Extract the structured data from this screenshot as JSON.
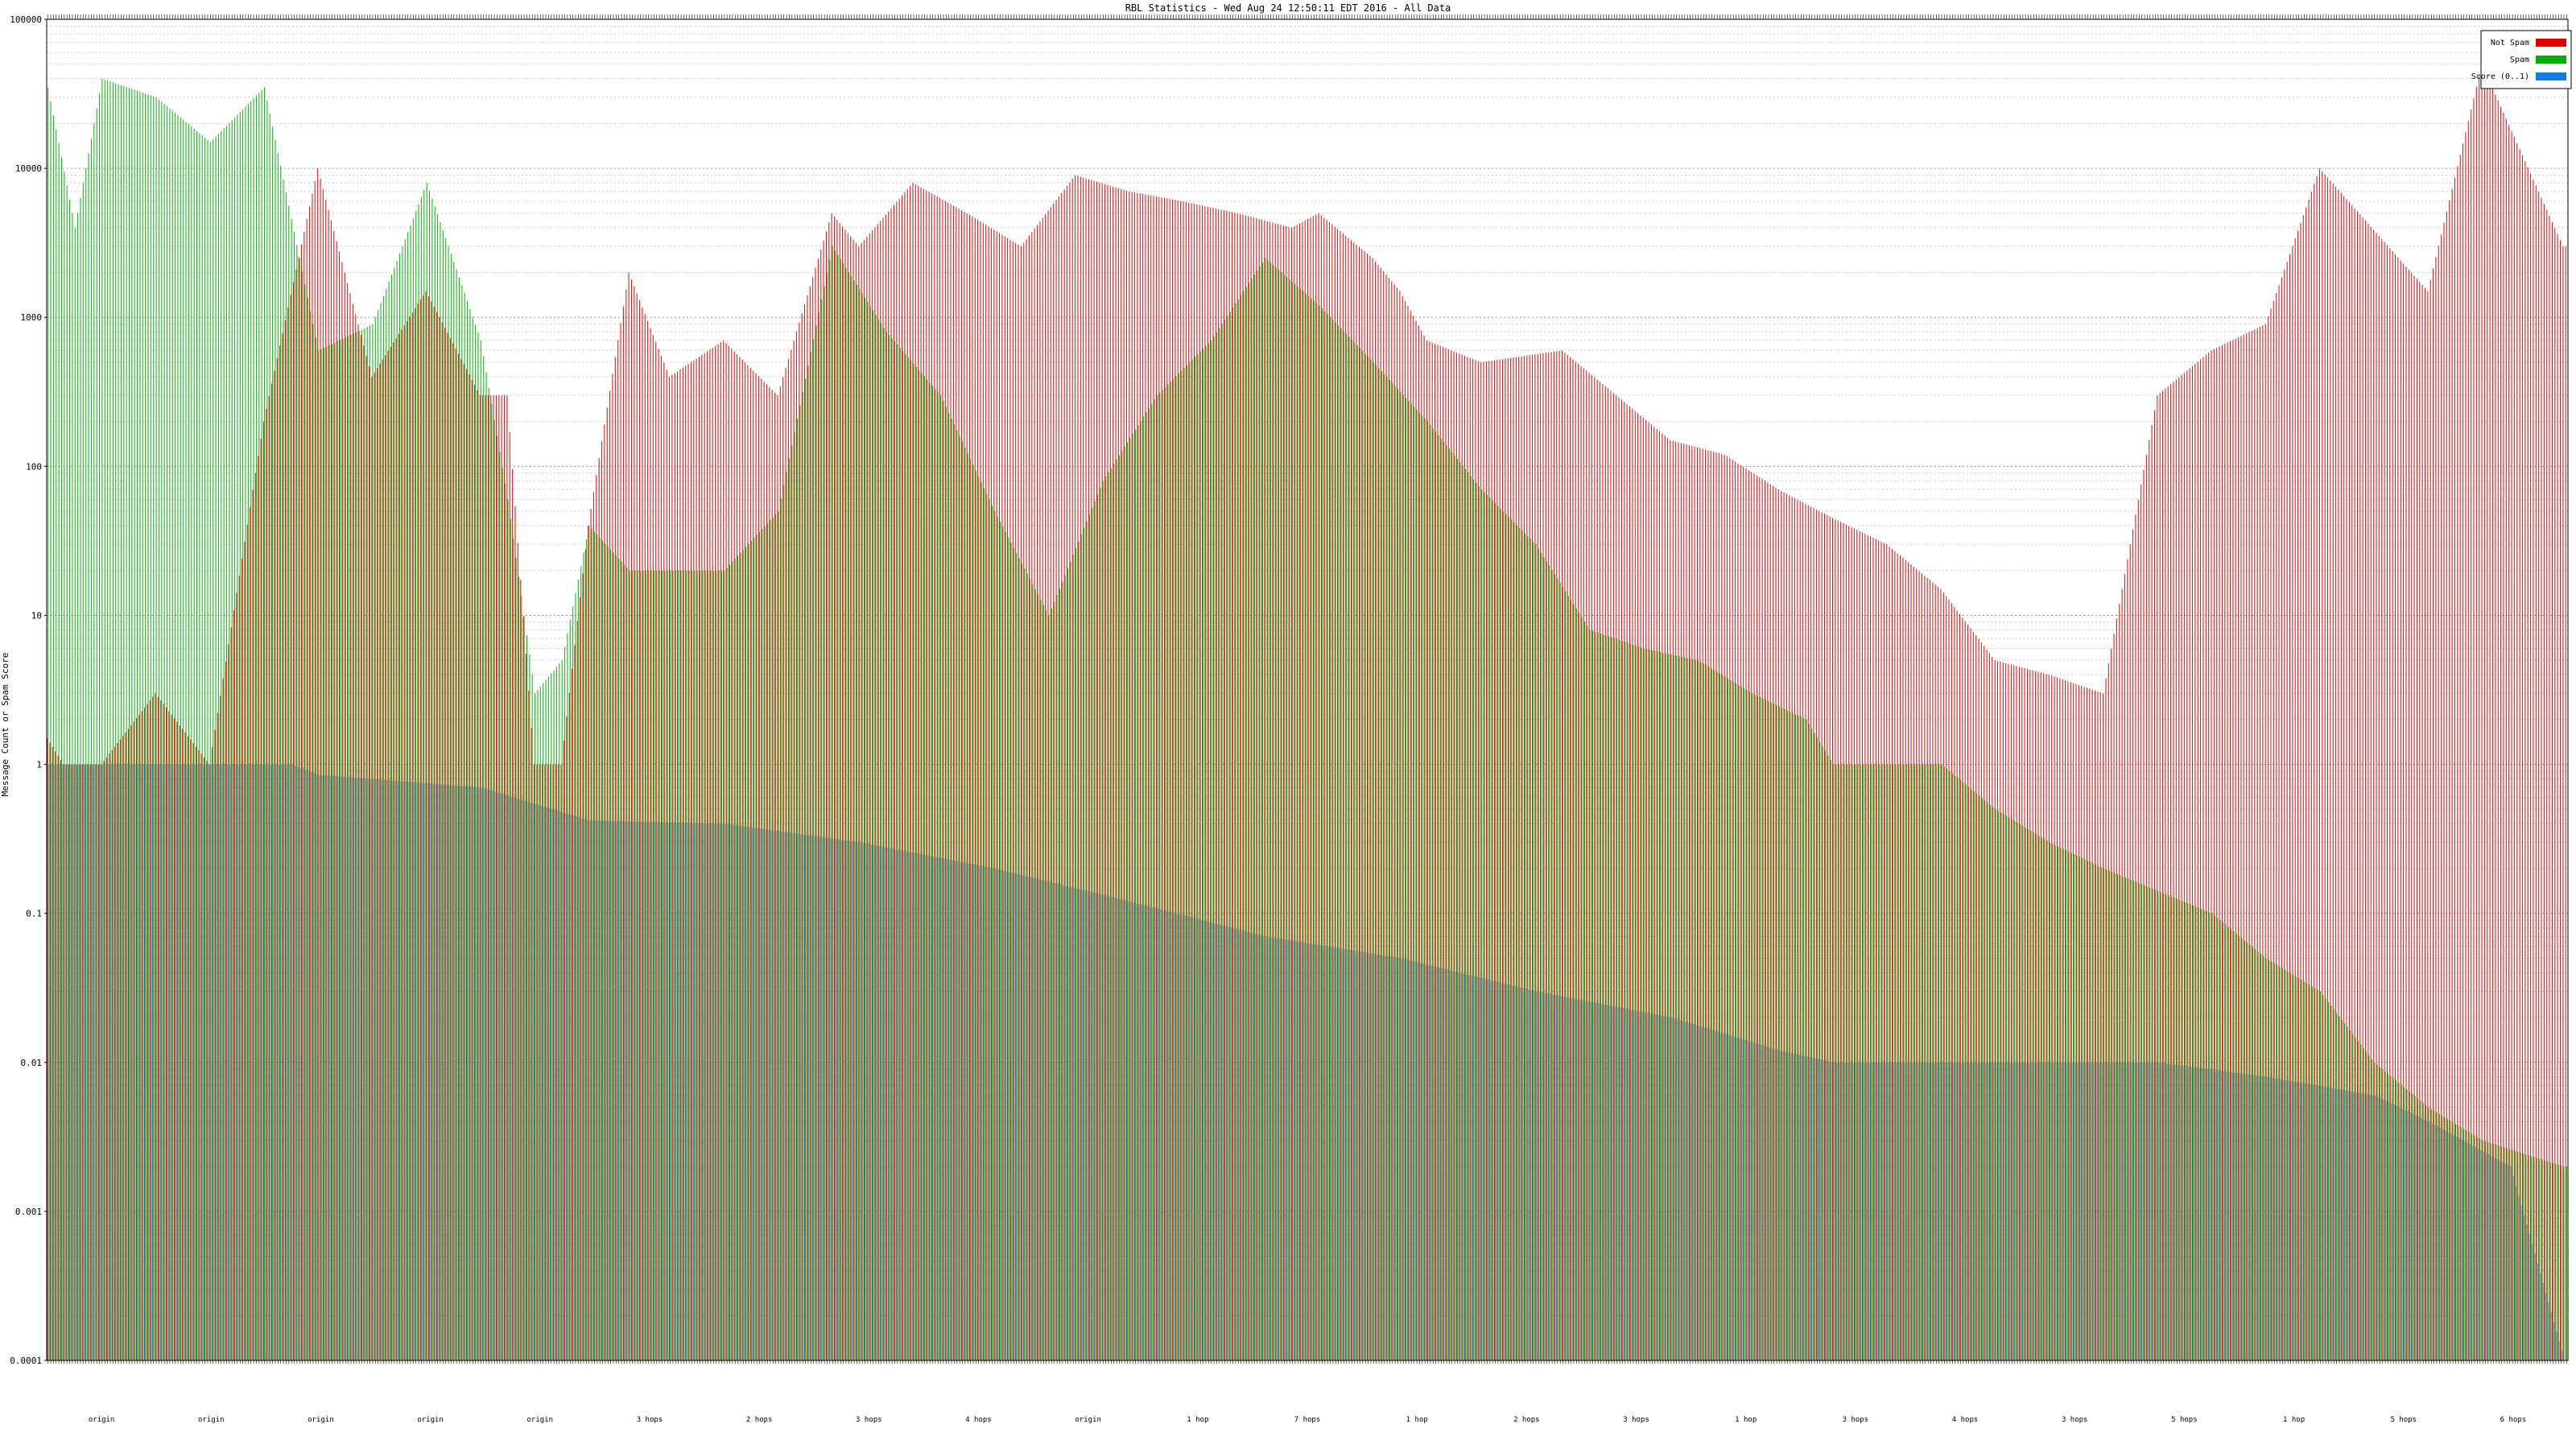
{
  "chart_data": {
    "type": "bar",
    "title": "RBL Statistics - Wed Aug 24 12:50:11 EDT 2016 - All Data",
    "xlabel": "",
    "ylabel": "Message Count or Spam Score",
    "yscale": "log",
    "ylim": [
      0.0001,
      100000
    ],
    "y_ticks": [
      "0.0001",
      "0.001",
      "0.01",
      "0.1",
      "1",
      "10",
      "100",
      "1000",
      "10000",
      "100000"
    ],
    "grid": true,
    "legend_position": "top-right",
    "series": [
      {
        "name": "Not Spam",
        "color": "#e00000",
        "anchors": [
          [
            0,
            1.5
          ],
          [
            6,
            1
          ],
          [
            20,
            1
          ],
          [
            40,
            3
          ],
          [
            60,
            1
          ],
          [
            80,
            200
          ],
          [
            100,
            10000
          ],
          [
            120,
            400
          ],
          [
            140,
            1500
          ],
          [
            160,
            300
          ],
          [
            170,
            300
          ],
          [
            180,
            1
          ],
          [
            190,
            1
          ],
          [
            200,
            40
          ],
          [
            215,
            2000
          ],
          [
            230,
            400
          ],
          [
            250,
            700
          ],
          [
            270,
            300
          ],
          [
            290,
            5000
          ],
          [
            300,
            3000
          ],
          [
            320,
            8000
          ],
          [
            340,
            5000
          ],
          [
            360,
            3000
          ],
          [
            380,
            9000
          ],
          [
            400,
            7000
          ],
          [
            420,
            6000
          ],
          [
            440,
            5000
          ],
          [
            460,
            4000
          ],
          [
            470,
            5000
          ],
          [
            490,
            2500
          ],
          [
            500,
            1500
          ],
          [
            510,
            700
          ],
          [
            530,
            500
          ],
          [
            560,
            600
          ],
          [
            580,
            300
          ],
          [
            600,
            150
          ],
          [
            620,
            120
          ],
          [
            640,
            70
          ],
          [
            660,
            45
          ],
          [
            680,
            30
          ],
          [
            700,
            15
          ],
          [
            720,
            5
          ],
          [
            740,
            4
          ],
          [
            760,
            3
          ],
          [
            780,
            300
          ],
          [
            800,
            600
          ],
          [
            820,
            900
          ],
          [
            840,
            10000
          ],
          [
            880,
            1500
          ],
          [
            900,
            50000
          ],
          [
            930,
            3000
          ]
        ]
      },
      {
        "name": "Spam",
        "color": "#00b000",
        "anchors": [
          [
            0,
            35000
          ],
          [
            10,
            4000
          ],
          [
            20,
            40000
          ],
          [
            40,
            30000
          ],
          [
            60,
            15000
          ],
          [
            80,
            35000
          ],
          [
            100,
            600
          ],
          [
            120,
            900
          ],
          [
            140,
            8000
          ],
          [
            160,
            700
          ],
          [
            170,
            60
          ],
          [
            180,
            3
          ],
          [
            190,
            5
          ],
          [
            200,
            40
          ],
          [
            215,
            20
          ],
          [
            230,
            20
          ],
          [
            250,
            20
          ],
          [
            270,
            50
          ],
          [
            290,
            3000
          ],
          [
            310,
            800
          ],
          [
            330,
            300
          ],
          [
            350,
            50
          ],
          [
            370,
            10
          ],
          [
            390,
            80
          ],
          [
            410,
            300
          ],
          [
            430,
            700
          ],
          [
            450,
            2500
          ],
          [
            470,
            1200
          ],
          [
            490,
            500
          ],
          [
            510,
            200
          ],
          [
            530,
            70
          ],
          [
            550,
            30
          ],
          [
            570,
            8
          ],
          [
            590,
            6
          ],
          [
            610,
            5
          ],
          [
            630,
            3
          ],
          [
            650,
            2
          ],
          [
            660,
            1
          ],
          [
            700,
            1
          ],
          [
            720,
            0.5
          ],
          [
            740,
            0.3
          ],
          [
            760,
            0.2
          ],
          [
            800,
            0.1
          ],
          [
            820,
            0.05
          ],
          [
            840,
            0.03
          ],
          [
            860,
            0.01
          ],
          [
            880,
            0.005
          ],
          [
            900,
            0.003
          ],
          [
            930,
            0.002
          ]
        ]
      },
      {
        "name": "Score (0..1)",
        "color": "#1080e0",
        "anchors": [
          [
            0,
            1
          ],
          [
            90,
            1
          ],
          [
            100,
            0.85
          ],
          [
            160,
            0.7
          ],
          [
            200,
            0.42
          ],
          [
            250,
            0.4
          ],
          [
            300,
            0.3
          ],
          [
            350,
            0.2
          ],
          [
            400,
            0.12
          ],
          [
            450,
            0.07
          ],
          [
            500,
            0.05
          ],
          [
            550,
            0.03
          ],
          [
            600,
            0.02
          ],
          [
            640,
            0.012
          ],
          [
            660,
            0.01
          ],
          [
            780,
            0.01
          ],
          [
            820,
            0.008
          ],
          [
            860,
            0.006
          ],
          [
            880,
            0.004
          ],
          [
            910,
            0.002
          ],
          [
            930,
            0.0001
          ]
        ]
      }
    ],
    "bar_count": 932,
    "group_labels": [
      "origin",
      "origin",
      "origin",
      "origin",
      "origin",
      "3 hops",
      "2 hops",
      "3 hops",
      "4 hops",
      "origin",
      "1 hop",
      "7 hops",
      "1 hop",
      "2 hops",
      "3 hops",
      "1 hop",
      "3 hops",
      "4 hops",
      "3 hops",
      "5 hops",
      "1 hop",
      "5 hops",
      "6 hops"
    ]
  },
  "legend": {
    "not_spam_label": "Not Spam",
    "spam_label": "Spam",
    "score_label": "Score (0..1)"
  }
}
